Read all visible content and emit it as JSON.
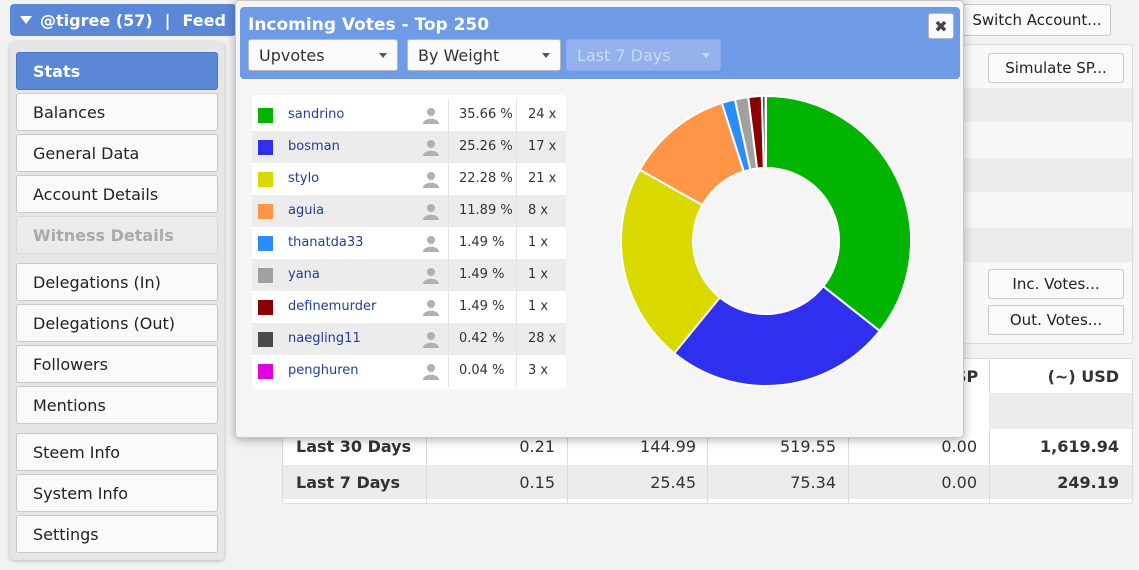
{
  "header": {
    "account": "@tigree (57)",
    "separator": "|",
    "feed": "Feed"
  },
  "sidebar": {
    "items": [
      {
        "label": "Stats",
        "state": "active"
      },
      {
        "label": "Balances",
        "state": "normal"
      },
      {
        "label": "General Data",
        "state": "normal"
      },
      {
        "label": "Account Details",
        "state": "normal"
      },
      {
        "label": "Witness Details",
        "state": "disabled"
      },
      {
        "label": "Delegations (In)",
        "state": "normal"
      },
      {
        "label": "Delegations (Out)",
        "state": "normal"
      },
      {
        "label": "Followers",
        "state": "normal"
      },
      {
        "label": "Mentions",
        "state": "normal"
      },
      {
        "label": "Steem Info",
        "state": "normal"
      },
      {
        "label": "System Info",
        "state": "normal"
      },
      {
        "label": "Settings",
        "state": "normal"
      }
    ]
  },
  "right_panel": {
    "switch_account": "Switch Account...",
    "simulate_sp": "Simulate SP...",
    "inc_votes": "Inc. Votes...",
    "out_votes": "Out. Votes..."
  },
  "table": {
    "headers": {
      "sp_partial": "SP",
      "usd": "(~) USD"
    },
    "rows": [
      {
        "label": "Last 30 Days",
        "c1": "0.21",
        "c2": "144.99",
        "c3": "519.55",
        "c4": "0.00",
        "usd": "1,619.94"
      },
      {
        "label": "Last 7 Days",
        "c1": "0.15",
        "c2": "25.45",
        "c3": "75.34",
        "c4": "0.00",
        "usd": "249.19"
      }
    ]
  },
  "modal": {
    "title": "Incoming Votes - Top 250",
    "close_symbol": "✖",
    "dropdowns": {
      "type": "Upvotes",
      "sort": "By Weight",
      "period": "Last 7 Days"
    }
  },
  "chart_data": {
    "type": "pie",
    "style": "donut",
    "categories": [
      "sandrino",
      "bosman",
      "stylo",
      "aguia",
      "thanatda33",
      "yana",
      "definemurder",
      "naegling11",
      "penghuren"
    ],
    "values": [
      35.66,
      25.26,
      22.28,
      11.89,
      1.49,
      1.49,
      1.49,
      0.42,
      0.04
    ],
    "labels": [
      "35.66 %",
      "25.26 %",
      "22.28 %",
      "11.89 %",
      "1.49 %",
      "1.49 %",
      "1.49 %",
      "0.42 %",
      "0.04 %"
    ],
    "counts": [
      "24 x",
      "17 x",
      "21 x",
      "8 x",
      "1 x",
      "1 x",
      "1 x",
      "28 x",
      "3 x"
    ],
    "colors": [
      "#00b400",
      "#2f2ff0",
      "#d9d900",
      "#ff9647",
      "#2b8cff",
      "#a0a0a0",
      "#8b0000",
      "#4a4a4a",
      "#e000e0"
    ]
  }
}
